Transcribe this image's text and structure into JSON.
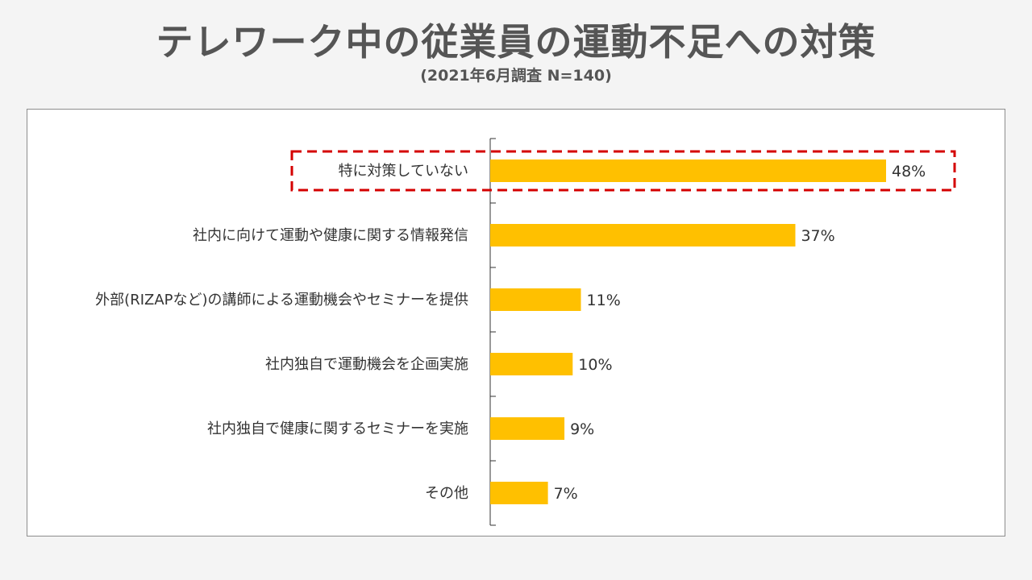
{
  "header": {
    "title": "テレワーク中の従業員の運動不足への対策",
    "subtitle": "(2021年6月調査  N=140)"
  },
  "colors": {
    "bar": "#ffc000",
    "highlight_border": "#d40000",
    "axis": "#333333",
    "text": "#333333"
  },
  "chart_data": {
    "type": "bar",
    "orientation": "horizontal",
    "title": "テレワーク中の従業員の運動不足への対策",
    "subtitle": "(2021年6月調査  N=140)",
    "categories": [
      "特に対策していない",
      "社内に向けて運動や健康に関する情報発信",
      "外部(RIZAPなど)の講師による運動機会やセミナーを提供",
      "社内独自で運動機会を企画実施",
      "社内独自で健康に関するセミナーを実施",
      "その他"
    ],
    "values": [
      48,
      37,
      11,
      10,
      9,
      7
    ],
    "value_labels": [
      "48%",
      "37%",
      "11%",
      "10%",
      "9%",
      "7%"
    ],
    "unit": "%",
    "xlim": [
      0,
      55
    ],
    "highlighted_category": "特に対策していない",
    "grid": false,
    "legend": "none"
  }
}
